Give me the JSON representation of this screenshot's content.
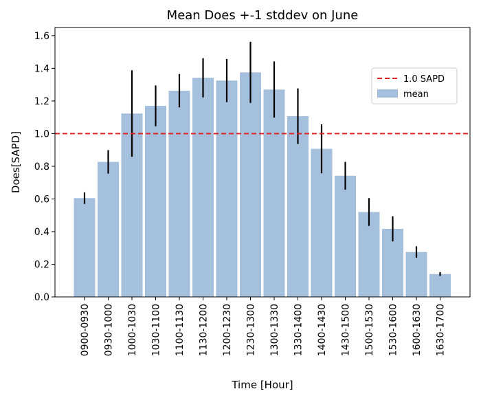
{
  "chart_data": {
    "type": "bar",
    "title": "Mean Does +-1 stddev on June",
    "xlabel": "Time [Hour]",
    "ylabel": "Does[SAPD]",
    "ylim": [
      0,
      1.65
    ],
    "yticks": [
      0.0,
      0.2,
      0.4,
      0.6,
      0.8,
      1.0,
      1.2,
      1.4,
      1.6
    ],
    "categories": [
      "0900-0930",
      "0930-1000",
      "1000-1030",
      "1030-1100",
      "1100-1130",
      "1130-1200",
      "1200-1230",
      "1230-1300",
      "1300-1330",
      "1330-1400",
      "1400-1430",
      "1430-1500",
      "1500-1530",
      "1530-1600",
      "1600-1630",
      "1630-1700"
    ],
    "series": [
      {
        "name": "mean",
        "color": "#a5c0dc",
        "values": [
          0.605,
          0.827,
          1.123,
          1.17,
          1.263,
          1.342,
          1.325,
          1.375,
          1.27,
          1.107,
          0.907,
          0.742,
          0.52,
          0.417,
          0.275,
          0.14
        ],
        "error": [
          0.035,
          0.072,
          0.265,
          0.125,
          0.102,
          0.12,
          0.132,
          0.187,
          0.172,
          0.17,
          0.15,
          0.085,
          0.085,
          0.077,
          0.035,
          0.012
        ]
      }
    ],
    "reference_line": {
      "name": "1.0 SAPD",
      "value": 1.0,
      "color": "#e02020",
      "style": "dashed"
    },
    "legend": {
      "placement": "upper-right",
      "entries": [
        "1.0 SAPD",
        "mean"
      ]
    },
    "grid": false
  }
}
